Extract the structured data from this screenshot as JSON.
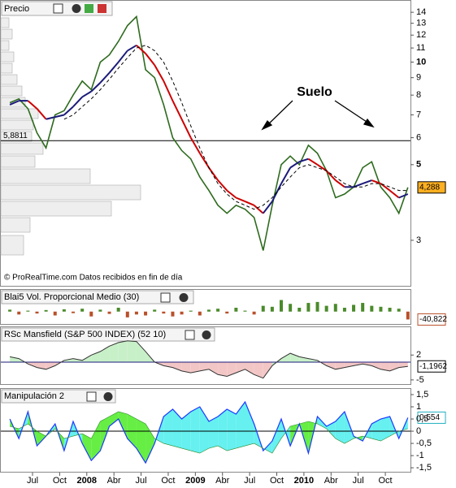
{
  "chart_data": [
    {
      "type": "line",
      "title": "Precio",
      "log_scale": true,
      "x": [
        "2007-04",
        "2007-05",
        "2007-06",
        "2007-07",
        "2007-08",
        "2007-09",
        "2007-10",
        "2007-11",
        "2007-12",
        "2008-01",
        "2008-02",
        "2008-03",
        "2008-04",
        "2008-05",
        "2008-06",
        "2008-07",
        "2008-08",
        "2008-09",
        "2008-10",
        "2008-11",
        "2008-12",
        "2009-01",
        "2009-02",
        "2009-03",
        "2009-04",
        "2009-05",
        "2009-06",
        "2009-07",
        "2009-08",
        "2009-09",
        "2009-10",
        "2009-11",
        "2009-12",
        "2010-01",
        "2010-02",
        "2010-03",
        "2010-04",
        "2010-05",
        "2010-06",
        "2010-07",
        "2010-08",
        "2010-09",
        "2010-10",
        "2010-11",
        "2010-12"
      ],
      "series": [
        {
          "color": "#2e6b1e",
          "values": [
            7.6,
            7.8,
            7.3,
            6.2,
            5.6,
            7.0,
            7.2,
            8.0,
            8.8,
            8.3,
            10.0,
            10.5,
            11.5,
            12.8,
            13.6,
            9.5,
            9.0,
            7.5,
            6.0,
            5.5,
            5.2,
            4.6,
            4.2,
            3.8,
            3.6,
            3.8,
            3.7,
            3.5,
            2.8,
            3.8,
            5.0,
            5.3,
            5.0,
            5.7,
            5.4,
            4.8,
            4.0,
            4.1,
            4.3,
            4.9,
            5.1,
            4.3,
            4.0,
            3.6,
            4.288
          ]
        },
        {
          "rising_color": "#1a1a7a",
          "falling_color": "#cc0000",
          "values": [
            7.5,
            7.7,
            7.7,
            7.3,
            6.8,
            6.9,
            7.0,
            7.4,
            7.9,
            8.2,
            8.7,
            9.3,
            10.0,
            10.8,
            11.2,
            10.6,
            9.8,
            8.8,
            7.7,
            6.8,
            6.0,
            5.4,
            4.9,
            4.5,
            4.2,
            4.0,
            3.9,
            3.8,
            3.6,
            3.9,
            4.4,
            4.9,
            5.1,
            5.2,
            5.0,
            4.8,
            4.5,
            4.3,
            4.3,
            4.4,
            4.5,
            4.4,
            4.2,
            4.0,
            4.1
          ]
        },
        {
          "color": "#000000",
          "dashed": true,
          "values": [
            null,
            null,
            null,
            null,
            null,
            null,
            6.8,
            7.0,
            7.4,
            7.8,
            8.3,
            8.9,
            9.6,
            10.3,
            11.0,
            11.2,
            10.8,
            10.0,
            8.8,
            7.6,
            6.5,
            5.6,
            4.9,
            4.4,
            4.1,
            3.9,
            3.8,
            3.7,
            3.8,
            4.0,
            4.3,
            4.6,
            4.9,
            5.0,
            4.9,
            4.8,
            4.6,
            4.4,
            4.3,
            4.3,
            4.4,
            4.4,
            4.3,
            4.2,
            4.2
          ]
        }
      ],
      "last_value_label": "4,288",
      "ylim": [
        2.23,
        14.8
      ],
      "yticks": [
        3,
        5,
        6,
        7,
        8,
        9,
        10,
        11,
        12,
        13,
        14
      ],
      "hline": {
        "value": 5.8811,
        "label": "5,8811"
      },
      "annotation": "Suelo",
      "footer": "© ProRealTime.com  Datos recibidos en fin de día"
    },
    {
      "type": "bar",
      "title": "Blai5 Vol. Proporcional Medio (30)",
      "positive_color": "#4a8a2a",
      "negative_color": "#b8502a",
      "values": [
        10,
        -15,
        5,
        -10,
        8,
        -20,
        12,
        -8,
        15,
        -25,
        10,
        -12,
        20,
        -30,
        -15,
        -20,
        10,
        -10,
        -25,
        -15,
        5,
        -20,
        10,
        15,
        -10,
        20,
        5,
        -15,
        30,
        25,
        60,
        40,
        20,
        45,
        50,
        30,
        40,
        20,
        35,
        45,
        30,
        25,
        20,
        15,
        -40.822
      ],
      "last_value_label": "-40,822",
      "ylim": [
        -60,
        100
      ]
    },
    {
      "type": "area",
      "title": "RSc Mansfield (S&P 500 INDEX) (52 10)",
      "positive_color": "#c8f0c8",
      "negative_color": "#f3c6c6",
      "values": [
        1.5,
        1,
        -0.5,
        -1.5,
        -2,
        -1,
        0.5,
        1,
        0.5,
        2,
        3,
        4.5,
        5.5,
        6,
        5.8,
        3,
        0,
        -1,
        -1.5,
        -2.5,
        -3,
        -2.5,
        -2,
        -3.5,
        -4,
        -3,
        -2,
        -3.5,
        -4.5,
        -1,
        1,
        2.5,
        1.5,
        1,
        0.5,
        -1,
        -2,
        -1.5,
        -1,
        -0.5,
        -1,
        -2,
        -2.5,
        -1.5,
        -1.1962
      ],
      "last_value_label": "-1,1962",
      "ylim": [
        -6.4,
        6.4
      ],
      "yticks": [
        2,
        -5
      ]
    },
    {
      "type": "band",
      "title": "Manipulación 2",
      "upper_color": "#66f0f0",
      "lower_color": "#66ee44",
      "series": [
        {
          "color": "#1a3aff",
          "values": [
            0.5,
            -0.3,
            0.8,
            -0.6,
            -0.2,
            0.3,
            -0.8,
            0.4,
            -0.5,
            -1.2,
            -0.8,
            0.2,
            0.5,
            -0.3,
            -0.7,
            -1.3,
            -0.5,
            0.6,
            0.9,
            0.5,
            0.8,
            1.0,
            0.4,
            0.6,
            0.9,
            0.7,
            1.2,
            0.3,
            -0.8,
            -0.4,
            0.5,
            -0.6,
            0.3,
            -0.9,
            0.6,
            0.2,
            0.4,
            0.8,
            -0.2,
            -0.4,
            0.3,
            0.5,
            0.6,
            -0.3,
            0.554
          ]
        },
        {
          "color": "#2a8a2a",
          "values": [
            0.2,
            0.1,
            0.3,
            0,
            -0.2,
            0.1,
            -0.3,
            -0.2,
            -0.1,
            -0.3,
            0.4,
            0.6,
            0.8,
            0.7,
            0.5,
            0.3,
            -0.3,
            -0.5,
            -0.6,
            -0.7,
            -0.8,
            -0.9,
            -0.7,
            -0.6,
            -0.8,
            -0.7,
            -0.6,
            -0.5,
            -0.7,
            -0.9,
            -0.3,
            0.2,
            0.3,
            0.4,
            0.3,
            0.1,
            -0.3,
            -0.5,
            -0.3,
            -0.2,
            -0.3,
            -0.4,
            -0.2,
            0.0,
            0.1
          ]
        }
      ],
      "last_value_label": "0,554",
      "ylim": [
        -1.63,
        1.7
      ],
      "yticks": [
        {
          "value": 1.5,
          "label": "1,5"
        },
        1,
        {
          "value": 0.5,
          "label": "0,5"
        },
        0,
        {
          "value": -0.5,
          "label": "-0,5"
        },
        -1,
        {
          "value": -1.5,
          "label": "-1,5"
        }
      ],
      "xticks": [
        {
          "value": "2007-07",
          "label": "Jul"
        },
        {
          "value": "2007-10",
          "label": "Oct"
        },
        {
          "value": "2008-01",
          "label": "2008"
        },
        {
          "value": "2008-04",
          "label": "Abr"
        },
        {
          "value": "2008-07",
          "label": "Jul"
        },
        {
          "value": "2008-10",
          "label": "Oct"
        },
        {
          "value": "2009-01",
          "label": "2009"
        },
        {
          "value": "2009-04",
          "label": "Abr"
        },
        {
          "value": "2009-07",
          "label": "Jul"
        },
        {
          "value": "2009-10",
          "label": "Oct"
        },
        {
          "value": "2010-01",
          "label": "2010"
        },
        {
          "value": "2010-04",
          "label": "Abr"
        },
        {
          "value": "2010-07",
          "label": "Jul"
        },
        {
          "value": "2010-10",
          "label": "Oct"
        }
      ]
    }
  ]
}
